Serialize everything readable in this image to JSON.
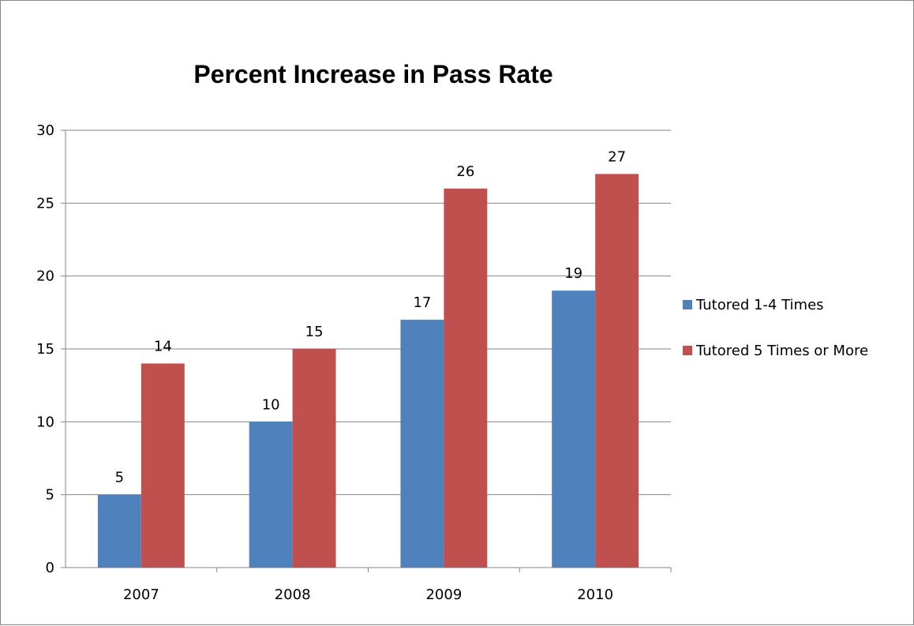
{
  "chart_data": {
    "type": "bar",
    "title": "Percent Increase in Pass Rate",
    "categories": [
      "2007",
      "2008",
      "2009",
      "2010"
    ],
    "series": [
      {
        "name": "Tutored 1-4 Times",
        "values": [
          5,
          10,
          17,
          19
        ],
        "color": "#4F81BD"
      },
      {
        "name": "Tutored 5 Times or More",
        "values": [
          14,
          15,
          26,
          27
        ],
        "color": "#C0504D"
      }
    ],
    "ylim": [
      0,
      30
    ],
    "yticks": [
      0,
      5,
      10,
      15,
      20,
      25,
      30
    ],
    "grid": true,
    "legend_position": "right"
  }
}
